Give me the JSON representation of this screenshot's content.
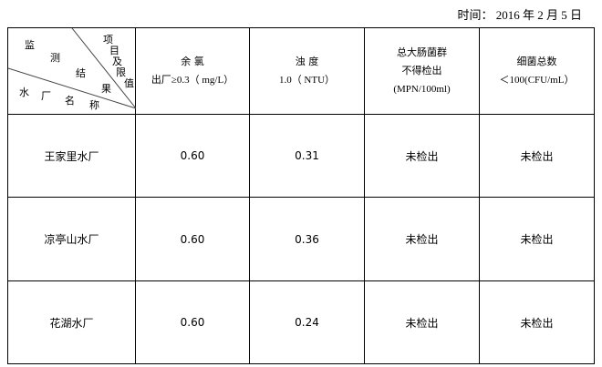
{
  "date_label": "时间：",
  "date_value": "2016 年  2 月 5 日",
  "corner": {
    "top_chars": [
      "监",
      "测",
      "结",
      "果"
    ],
    "right_chars": [
      "项",
      "目",
      "及",
      "限",
      "值"
    ],
    "bottom_chars": [
      "水",
      "厂",
      "名",
      "称"
    ]
  },
  "headers": [
    {
      "line1": "余 氯",
      "line2": "出厂≥0.3（ mg/L）",
      "line3": ""
    },
    {
      "line1": "浊 度",
      "line2": "1.0（ NTU）",
      "line3": ""
    },
    {
      "line1": "总大肠菌群",
      "line2": "不得检出",
      "line3": "(MPN/100ml)"
    },
    {
      "line1": "细菌总数",
      "line2": "＜100(CFU/mL）",
      "line3": ""
    }
  ],
  "rows": [
    {
      "name": "王家里水厂",
      "chlorine": "0.60",
      "turbidity": "0.31",
      "coliform": "未检出",
      "bacteria": "未检出"
    },
    {
      "name": "凉亭山水厂",
      "chlorine": "0.60",
      "turbidity": "0.36",
      "coliform": "未检出",
      "bacteria": "未检出"
    },
    {
      "name": "花湖水厂",
      "chlorine": "0.60",
      "turbidity": "0.24",
      "coliform": "未检出",
      "bacteria": "未检出"
    }
  ]
}
